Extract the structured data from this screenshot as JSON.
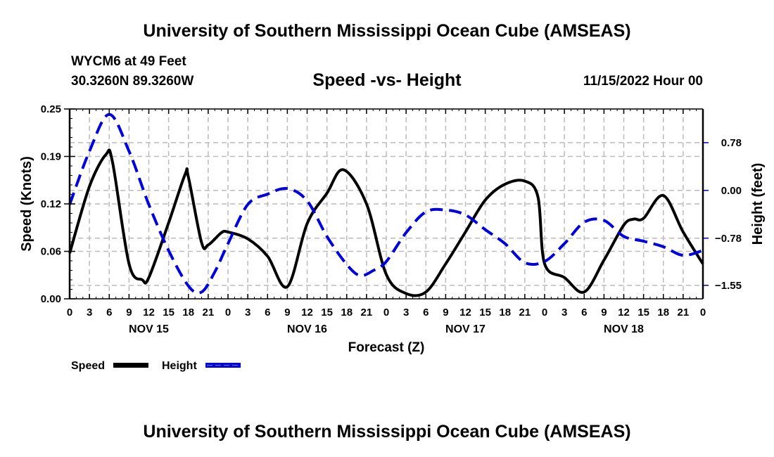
{
  "header": {
    "title_top": "University of Southern Mississippi Ocean Cube (AMSEAS)",
    "station": "WYCM6 at 49 Feet",
    "coords": "30.3260N  89.3260W",
    "datetime": "11/15/2022 Hour 00",
    "title_bottom": "University of Southern Mississippi Ocean Cube (AMSEAS)"
  },
  "chart_data": {
    "type": "line",
    "title": "Speed -vs- Height",
    "xlabel": "Forecast (Z)",
    "ylabel": "Speed (Knots)",
    "y2label": "Height (feet)",
    "xlim": [
      0,
      96
    ],
    "ylim": [
      0,
      0.25
    ],
    "y2lim": [
      -1.77,
      1.33
    ],
    "grid": true,
    "x_tick_labels": [
      "0",
      "3",
      "6",
      "9",
      "12",
      "15",
      "18",
      "21",
      "0",
      "3",
      "6",
      "9",
      "12",
      "15",
      "18",
      "21",
      "0",
      "3",
      "6",
      "9",
      "12",
      "15",
      "18",
      "21",
      "0",
      "3",
      "6",
      "9",
      "12",
      "15",
      "18",
      "21",
      "0"
    ],
    "day_labels": [
      {
        "label": "NOV 15",
        "hour": 12
      },
      {
        "label": "NOV 16",
        "hour": 36
      },
      {
        "label": "NOV 17",
        "hour": 60
      },
      {
        "label": "NOV 18",
        "hour": 84
      }
    ],
    "y_ticks": [
      {
        "value": 0.0,
        "label": "0.00"
      },
      {
        "value": 0.0625,
        "label": "0.06"
      },
      {
        "value": 0.125,
        "label": "0.12"
      },
      {
        "value": 0.1875,
        "label": "0.19"
      },
      {
        "value": 0.25,
        "label": "0.25"
      }
    ],
    "y2_ticks": [
      {
        "value": 0.78,
        "label": "0.78"
      },
      {
        "value": 0.0,
        "label": "0.00"
      },
      {
        "value": -0.78,
        "label": "−0.78"
      },
      {
        "value": -1.55,
        "label": "−1.55"
      }
    ],
    "legend": {
      "placement": "bottom-left"
    },
    "series": [
      {
        "name": "Speed",
        "axis": "left",
        "color": "#000000",
        "style": "solid",
        "x": [
          0,
          3,
          5.5,
          6.5,
          9,
          11,
          12,
          15,
          17.5,
          18,
          20,
          21,
          23,
          24,
          27,
          30,
          33,
          36,
          39,
          41.5,
          45,
          48,
          51,
          54,
          57,
          60,
          63,
          66,
          69,
          71,
          72,
          75,
          78,
          81,
          84,
          85.5,
          87,
          90,
          93,
          96
        ],
        "values": [
          0.06,
          0.148,
          0.19,
          0.18,
          0.046,
          0.025,
          0.028,
          0.1,
          0.164,
          0.16,
          0.074,
          0.071,
          0.087,
          0.088,
          0.079,
          0.056,
          0.016,
          0.099,
          0.139,
          0.17,
          0.125,
          0.032,
          0.007,
          0.009,
          0.046,
          0.088,
          0.13,
          0.151,
          0.155,
          0.134,
          0.046,
          0.028,
          0.009,
          0.051,
          0.097,
          0.105,
          0.106,
          0.136,
          0.088,
          0.046
        ]
      },
      {
        "name": "Height",
        "axis": "right",
        "color": "#0000dd",
        "style": "dashed",
        "x": [
          0,
          3,
          6,
          9,
          12,
          15,
          18,
          20,
          22,
          24,
          27,
          30,
          33,
          36,
          39,
          42,
          44,
          46,
          48,
          51,
          54,
          57,
          60,
          63,
          66,
          69,
          72,
          75,
          78,
          81,
          84,
          87,
          90,
          93,
          96
        ],
        "values": [
          -0.23,
          0.64,
          1.24,
          0.64,
          -0.23,
          -0.98,
          -1.56,
          -1.66,
          -1.33,
          -0.87,
          -0.23,
          -0.06,
          0.03,
          -0.17,
          -0.75,
          -1.21,
          -1.39,
          -1.31,
          -1.16,
          -0.69,
          -0.35,
          -0.32,
          -0.4,
          -0.64,
          -0.87,
          -1.18,
          -1.16,
          -0.87,
          -0.52,
          -0.49,
          -0.75,
          -0.83,
          -0.92,
          -1.06,
          -0.98
        ]
      }
    ]
  }
}
